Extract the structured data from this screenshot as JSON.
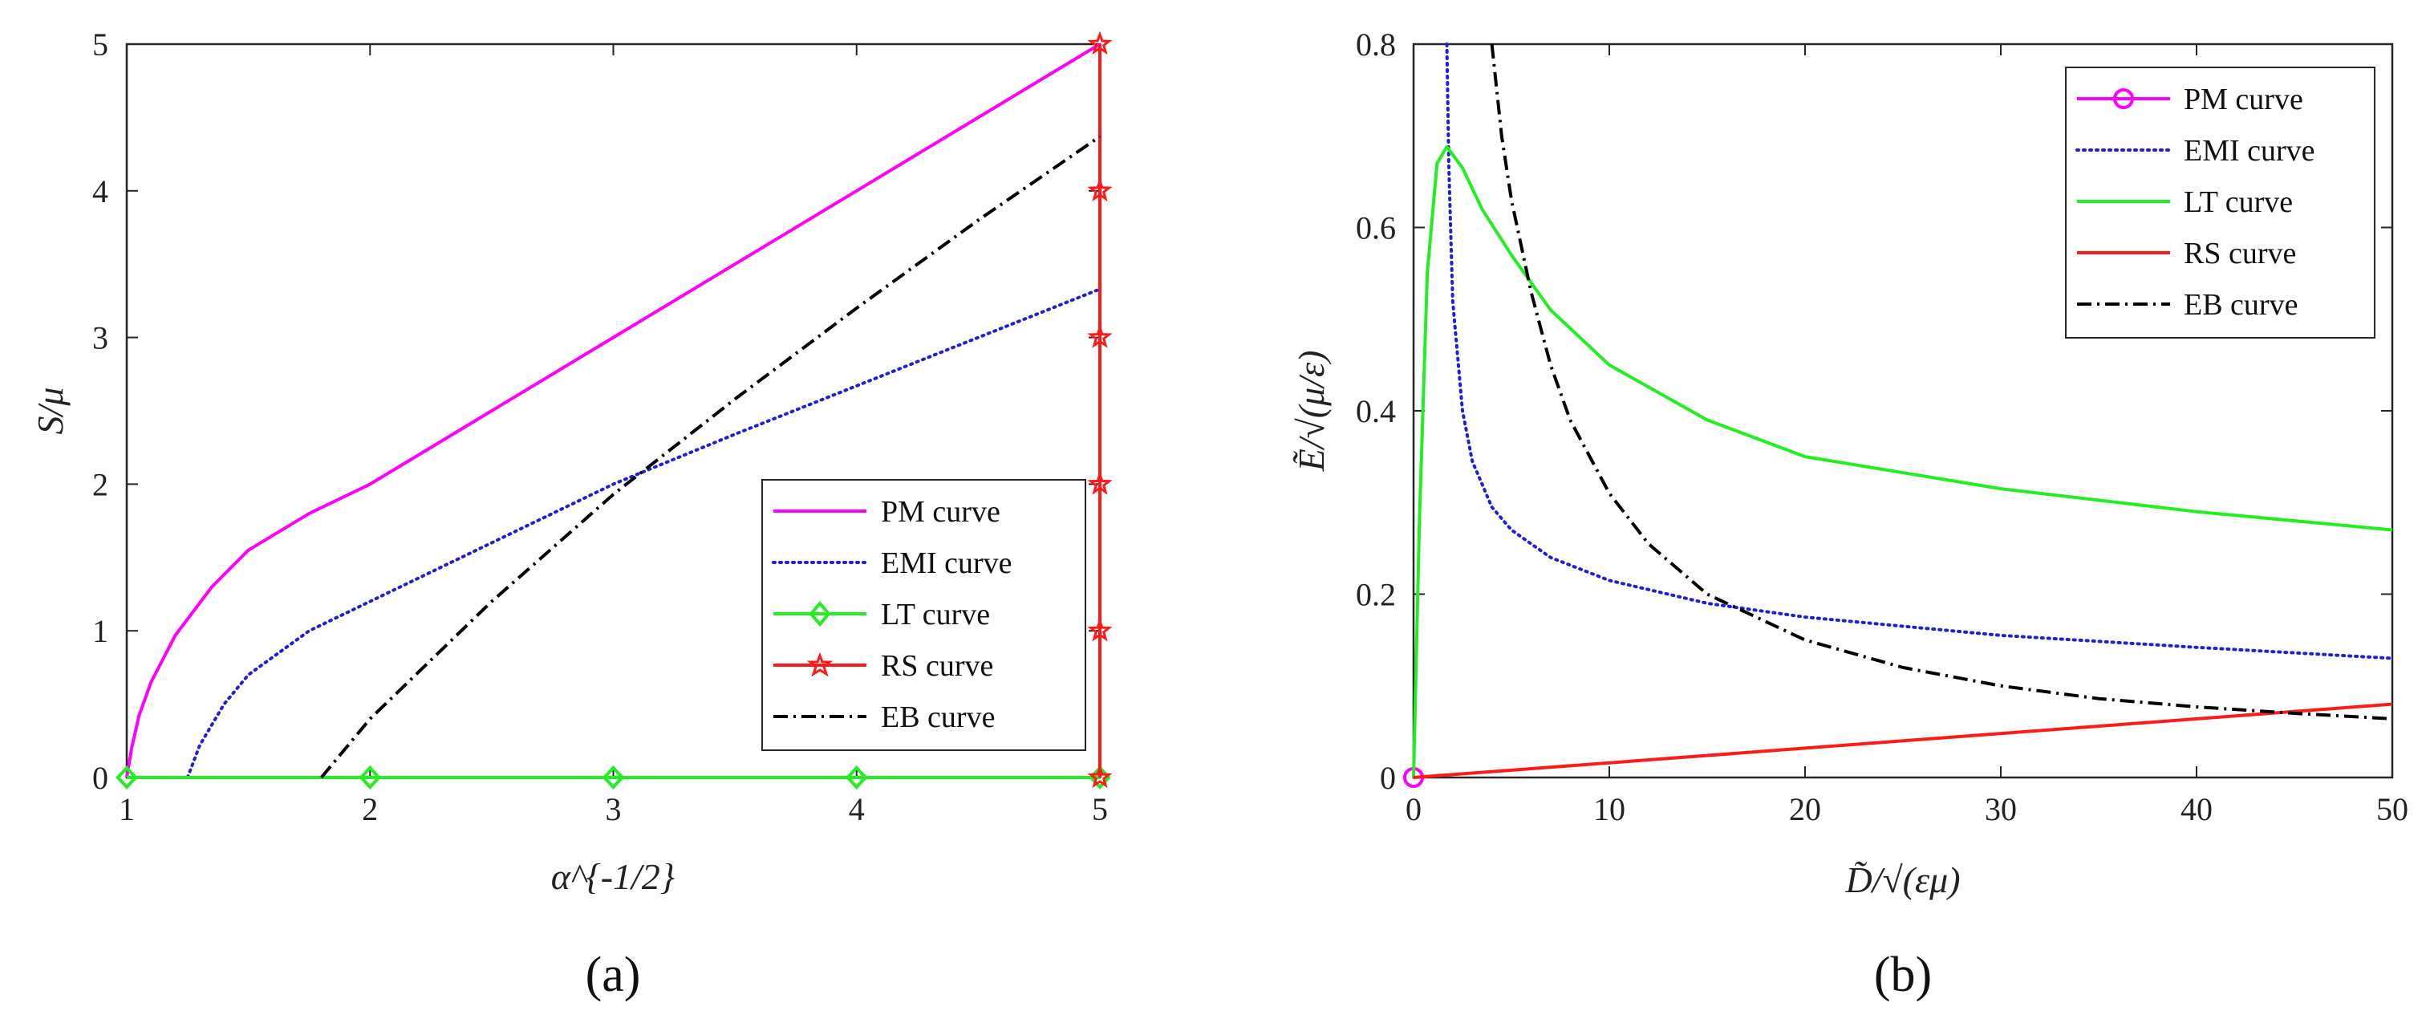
{
  "chart_data": [
    {
      "type": "line",
      "panel": "a",
      "panel_label": "(a)",
      "xlabel": "α^{-1/2}",
      "ylabel": "S/μ",
      "xlim": [
        1,
        5
      ],
      "ylim": [
        0,
        5
      ],
      "xticks": [
        1,
        2,
        3,
        4,
        5
      ],
      "yticks": [
        0,
        1,
        2,
        3,
        4,
        5
      ],
      "legend_position": "lower-right",
      "series": [
        {
          "name": "PM curve",
          "color": "#ff00ff",
          "style": "solid",
          "marker": "none",
          "x": [
            1,
            1.02,
            1.05,
            1.1,
            1.2,
            1.35,
            1.5,
            1.75,
            2,
            2.5,
            3,
            3.5,
            4,
            4.5,
            5
          ],
          "y": [
            0,
            0.2,
            0.42,
            0.65,
            0.97,
            1.3,
            1.55,
            1.8,
            2.0,
            2.5,
            3.0,
            3.5,
            4.0,
            4.5,
            5.0
          ]
        },
        {
          "name": "EMI curve",
          "color": "#1f1fd6",
          "style": "dotted",
          "marker": "none",
          "x": [
            1.25,
            1.3,
            1.4,
            1.5,
            1.75,
            2,
            2.5,
            3,
            3.5,
            4,
            4.5,
            5
          ],
          "y": [
            0,
            0.22,
            0.5,
            0.7,
            1.0,
            1.2,
            1.6,
            2.0,
            2.34,
            2.67,
            3.0,
            3.33
          ]
        },
        {
          "name": "LT curve",
          "color": "#22ee22",
          "style": "solid",
          "marker": "diamond",
          "x": [
            1,
            5
          ],
          "y": [
            0,
            0
          ],
          "marker_x": [
            1,
            2,
            3,
            4,
            5
          ],
          "marker_y": [
            0,
            0,
            0,
            0,
            0
          ]
        },
        {
          "name": "RS curve",
          "color": "#ff1a1a",
          "style": "solid",
          "marker": "star",
          "x": [
            5,
            5
          ],
          "y": [
            0,
            5
          ],
          "marker_x": [
            5,
            5,
            5,
            5,
            5,
            5
          ],
          "marker_y": [
            0,
            1,
            2,
            3,
            4,
            5
          ]
        },
        {
          "name": "EB curve",
          "color": "#000000",
          "style": "dashdot",
          "marker": "none",
          "x": [
            1.8,
            2,
            2.5,
            3,
            3.5,
            4,
            4.5,
            5
          ],
          "y": [
            0,
            0.4,
            1.2,
            1.93,
            2.58,
            3.2,
            3.8,
            4.37
          ]
        }
      ]
    },
    {
      "type": "line",
      "panel": "b",
      "panel_label": "(b)",
      "xlabel": "D̃/√(εμ)",
      "ylabel": "Ẽ/√(μ/ε)",
      "xlim": [
        0,
        50
      ],
      "ylim": [
        0,
        0.8
      ],
      "xticks": [
        0,
        10,
        20,
        30,
        40,
        50
      ],
      "yticks": [
        0,
        0.2,
        0.4,
        0.6,
        0.8
      ],
      "legend_position": "upper-right",
      "series": [
        {
          "name": "PM curve",
          "color": "#ff00ff",
          "style": "solid",
          "marker": "circle",
          "x": [
            0
          ],
          "y": [
            0
          ],
          "marker_x": [
            0
          ],
          "marker_y": [
            0
          ]
        },
        {
          "name": "EMI curve",
          "color": "#1f1fd6",
          "style": "dotted",
          "marker": "none",
          "x": [
            1.7,
            1.8,
            2,
            2.5,
            3,
            4,
            5,
            7,
            10,
            15,
            20,
            30,
            40,
            50
          ],
          "y": [
            0.8,
            0.67,
            0.52,
            0.4,
            0.345,
            0.295,
            0.27,
            0.24,
            0.215,
            0.19,
            0.175,
            0.155,
            0.142,
            0.13
          ]
        },
        {
          "name": "LT curve",
          "color": "#22ee22",
          "style": "solid",
          "marker": "none",
          "x": [
            0,
            0.3,
            0.7,
            1.2,
            1.7,
            2.5,
            3.5,
            5,
            7,
            10,
            15,
            20,
            30,
            40,
            50
          ],
          "y": [
            0,
            0.28,
            0.55,
            0.67,
            0.688,
            0.665,
            0.62,
            0.57,
            0.51,
            0.45,
            0.39,
            0.35,
            0.315,
            0.29,
            0.27
          ]
        },
        {
          "name": "RS curve",
          "color": "#ff1a1a",
          "style": "solid",
          "marker": "none",
          "x": [
            0,
            50
          ],
          "y": [
            0,
            0.08
          ]
        },
        {
          "name": "EB curve",
          "color": "#000000",
          "style": "dashdot",
          "marker": "none",
          "x": [
            4.0,
            4.5,
            5,
            6,
            7,
            8,
            10,
            12,
            15,
            20,
            25,
            30,
            35,
            40,
            45,
            50
          ],
          "y": [
            0.8,
            0.7,
            0.63,
            0.53,
            0.45,
            0.39,
            0.31,
            0.255,
            0.2,
            0.15,
            0.12,
            0.1,
            0.086,
            0.077,
            0.07,
            0.064
          ]
        }
      ]
    }
  ]
}
